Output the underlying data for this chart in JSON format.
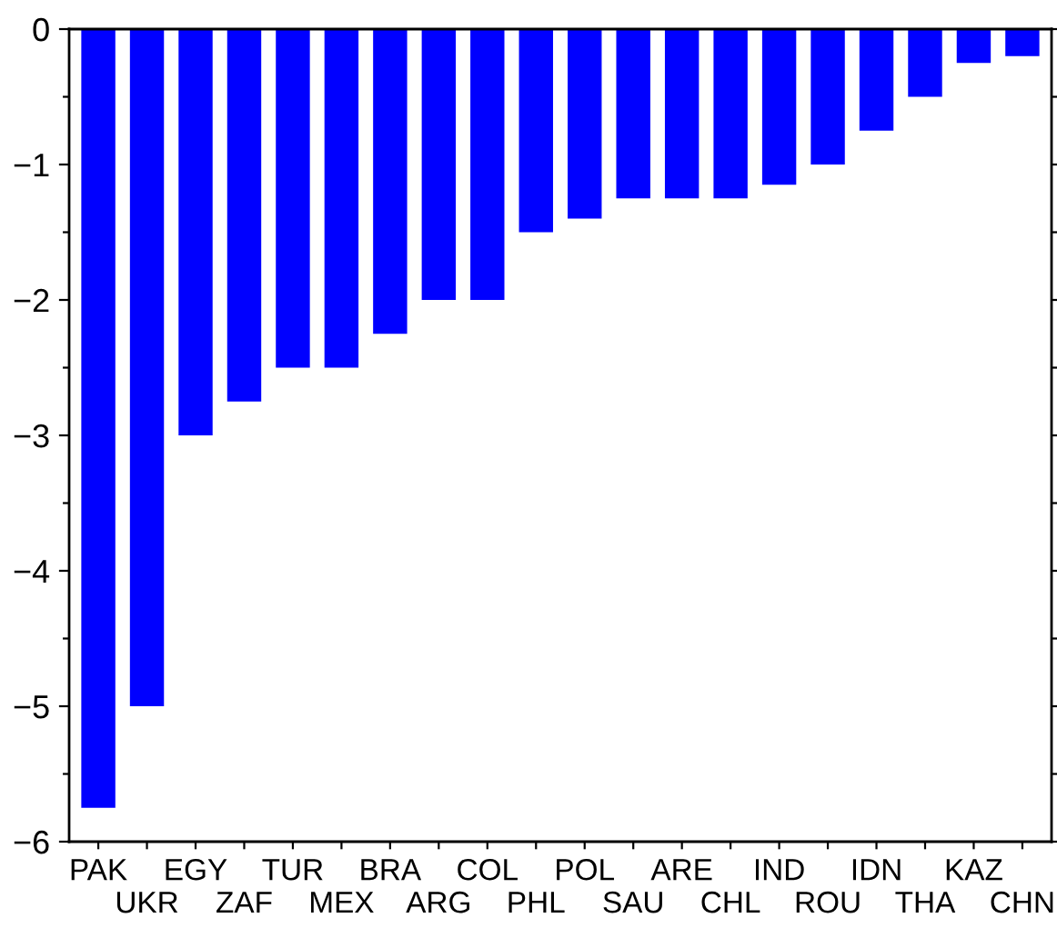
{
  "chart_data": {
    "type": "bar",
    "categories": [
      "PAK",
      "UKR",
      "EGY",
      "ZAF",
      "TUR",
      "MEX",
      "BRA",
      "ARG",
      "COL",
      "PHL",
      "POL",
      "SAU",
      "ARE",
      "CHL",
      "IND",
      "ROU",
      "IDN",
      "THA",
      "KAZ",
      "CHN"
    ],
    "values": [
      -5.75,
      -5.0,
      -3.0,
      -2.75,
      -2.5,
      -2.5,
      -2.25,
      -2.0,
      -2.0,
      -1.5,
      -1.4,
      -1.25,
      -1.25,
      -1.25,
      -1.15,
      -1.0,
      -0.75,
      -0.5,
      -0.25,
      -0.2
    ],
    "color": "#0000ff",
    "ylim": [
      -6,
      0
    ],
    "yticks": [
      {
        "value": -6,
        "label": "−6"
      },
      {
        "value": -5.5,
        "label": null
      },
      {
        "value": -5,
        "label": "−5"
      },
      {
        "value": -4.5,
        "label": null
      },
      {
        "value": -4,
        "label": "−4"
      },
      {
        "value": -3.5,
        "label": null
      },
      {
        "value": -3,
        "label": "−3"
      },
      {
        "value": -2.5,
        "label": null
      },
      {
        "value": -2,
        "label": "−2"
      },
      {
        "value": -1.5,
        "label": null
      },
      {
        "value": -1,
        "label": "−1"
      },
      {
        "value": -0.5,
        "label": null
      },
      {
        "value": 0,
        "label": "0"
      }
    ],
    "grid": false
  }
}
